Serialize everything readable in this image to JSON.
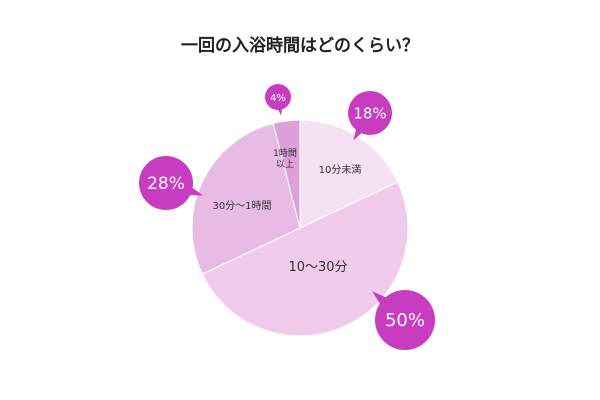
{
  "chart_data": {
    "type": "pie",
    "title": "一回の入浴時間はどのくらい？",
    "categories": [
      "10分未満",
      "10〜30分",
      "30分〜1時間",
      "1時間以上"
    ],
    "values": [
      18,
      50,
      28,
      4
    ],
    "value_labels": [
      "18%",
      "50%",
      "28%",
      "4%"
    ],
    "colors": [
      "#f6e1f3",
      "#f0cbec",
      "#e7bbe4",
      "#de9fda"
    ],
    "label_color": "#c83cc0"
  }
}
